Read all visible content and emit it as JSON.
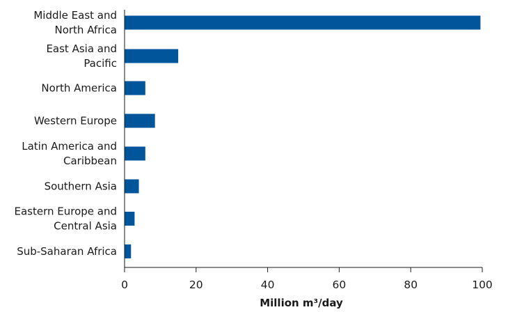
{
  "chart_data": {
    "type": "bar",
    "orientation": "horizontal",
    "categories": [
      [
        "Middle East and",
        "North Africa"
      ],
      [
        "East Asia and",
        "Pacific"
      ],
      [
        "North America"
      ],
      [
        "Western Europe"
      ],
      [
        "Latin America and",
        "Caribbean"
      ],
      [
        "Southern Asia"
      ],
      [
        "Eastern Europe and",
        "Central Asia"
      ],
      [
        "Sub-Saharan Africa"
      ]
    ],
    "values": [
      99.5,
      15,
      5.8,
      8.5,
      5.8,
      4,
      2.8,
      1.8
    ],
    "xlabel": "Million m³/day",
    "xlim": [
      0,
      100
    ],
    "xticks": [
      0,
      20,
      40,
      60,
      80,
      100
    ],
    "grid": false,
    "bar_color": "#00559b",
    "axis_color": "#1a1a1a"
  }
}
